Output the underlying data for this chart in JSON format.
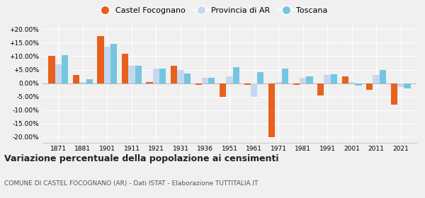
{
  "years": [
    1871,
    1881,
    1901,
    1911,
    1921,
    1931,
    1936,
    1951,
    1961,
    1971,
    1981,
    1991,
    2001,
    2011,
    2021
  ],
  "castel_vals": [
    10.0,
    3.0,
    17.5,
    11.0,
    0.5,
    6.5,
    -0.5,
    -5.0,
    -0.5,
    -20.0,
    -0.5,
    -4.5,
    2.5,
    -2.5,
    -8.0
  ],
  "provincia_vals": [
    7.0,
    0.5,
    13.5,
    6.5,
    5.5,
    5.0,
    2.0,
    2.5,
    -5.0,
    0.5,
    2.0,
    3.0,
    0.5,
    3.0,
    -1.5
  ],
  "toscana_vals": [
    10.5,
    1.5,
    14.5,
    6.5,
    5.5,
    3.5,
    2.0,
    6.0,
    4.0,
    5.5,
    2.5,
    3.2,
    -1.0,
    5.0,
    -2.0
  ],
  "castel_color": "#e8601c",
  "provincia_color": "#c5d8f0",
  "toscana_color": "#74c6e0",
  "title": "Variazione percentuale della popolazione ai censimenti",
  "subtitle": "COMUNE DI CASTEL FOCOGNANO (AR) - Dati ISTAT - Elaborazione TUTTITALIA.IT",
  "ylim": [
    -22,
    22
  ],
  "yticks": [
    -20,
    -15,
    -10,
    -5,
    0,
    5,
    10,
    15,
    20
  ],
  "background_color": "#f0f0f0",
  "grid_color": "#ffffff",
  "legend_labels": [
    "Castel Focognano",
    "Provincia di AR",
    "Toscana"
  ],
  "title_fontsize": 9,
  "subtitle_fontsize": 6.5,
  "tick_fontsize": 6.5
}
